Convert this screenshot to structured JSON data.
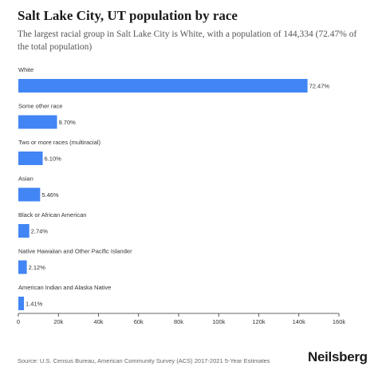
{
  "title": "Salt Lake City, UT population by race",
  "subtitle": "The largest racial group in Salt Lake City is White, with a population of 144,334 (72.47% of the total population)",
  "chart_data": {
    "type": "bar",
    "orientation": "horizontal",
    "categories": [
      "White",
      "Some other race",
      "Two or more races (multiracial)",
      "Asian",
      "Black or African American",
      "Native Hawaiian and Other Pacific Islander",
      "American Indian and Alaska Native"
    ],
    "values": [
      144334,
      19320,
      12150,
      10875,
      5457,
      4222,
      2808
    ],
    "data_labels": [
      "72.47%",
      "9.70%",
      "6.10%",
      "5.46%",
      "2.74%",
      "2.12%",
      "1.41%"
    ],
    "xlim": [
      0,
      160000
    ],
    "xticks": [
      0,
      20000,
      40000,
      60000,
      80000,
      100000,
      120000,
      140000,
      160000
    ],
    "xtick_labels": [
      "0",
      "20k",
      "40k",
      "60k",
      "80k",
      "100k",
      "120k",
      "140k",
      "160k"
    ],
    "bar_color": "#4285f4",
    "grid": false,
    "legend": "none"
  },
  "footer": {
    "source": "Source: U.S. Census Bureau, American Community Survey (ACS) 2017-2021 5-Year Estimates",
    "brand": "Neilsberg"
  }
}
